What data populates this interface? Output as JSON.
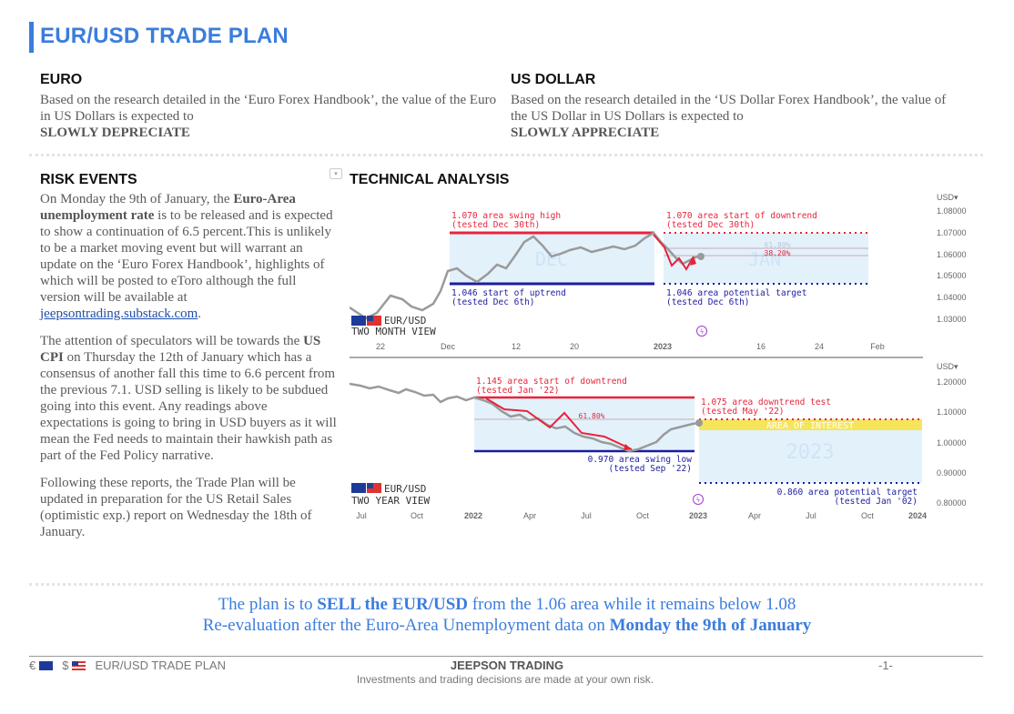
{
  "title": "EUR/USD TRADE PLAN",
  "euro": {
    "heading": "EURO",
    "text": "Based on the research detailed in the ‘Euro Forex Handbook’, the value of the Euro in US Dollars is expected to",
    "verdict": "SLOWLY DEPRECIATE"
  },
  "usd": {
    "heading": "US DOLLAR",
    "text": "Based on the research detailed in the ‘US Dollar Forex Handbook’, the value of the US Dollar in US Dollars is expected to",
    "verdict": "SLOWLY APPRECIATE"
  },
  "risk": {
    "heading": "RISK EVENTS",
    "p1_a": "On Monday the 9th of January, the ",
    "p1_b": "Euro-Area unemployment rate",
    "p1_c": " is to be released and is expected to show a continuation of 6.5 percent.This is unlikely to be a market moving event but will warrant an update on the ‘Euro Forex Handbook’, highlights of which will be posted to eToro although the full version will be available at ",
    "p1_link": "jeepsontrading.substack.com",
    "p1_d": ".",
    "p2_a": "The attention of speculators will be towards the ",
    "p2_b": "US CPI",
    "p2_c": " on Thursday the 12th of January which has a consensus of another fall this time to 6.6 percent from the previous 7.1. USD selling is likely to be subdued going into this event. Any readings above expectations is going to bring in USD buyers as it will mean the Fed needs to maintain their hawkish path as part of the Fed Policy narrative.",
    "p3": "Following these reports, the Trade Plan will be updated in preparation for the US Retail Sales (optimistic exp.) report on Wednesday the 18th of January."
  },
  "ta": {
    "heading": "TECHNICAL ANALYSIS",
    "chart1": {
      "pair": "EUR/USD",
      "view": "TWO MONTH VIEW",
      "currency": "USD",
      "yticks": [
        "1.08000",
        "1.07000",
        "1.06000",
        "1.05000",
        "1.04000",
        "1.03000"
      ],
      "xticks": [
        "22",
        "Dec",
        "12",
        "20",
        "2023",
        "16",
        "24",
        "Feb"
      ],
      "ann_high_1": "1.070 area swing high",
      "ann_high_2": "(tested Dec 30th)",
      "ann_down_1": "1.070 area start of downtrend",
      "ann_down_2": "(tested Dec 30th)",
      "ann_up_1": "1.046 start of uptrend",
      "ann_up_2": "(tested Dec 6th)",
      "ann_tgt_1": "1.046 area potential target",
      "ann_tgt_2": "(tested Dec 6th)",
      "fib1": "61.80%",
      "fib2": "38.20%",
      "wm1": "DEC",
      "wm2": "JAN"
    },
    "chart2": {
      "pair": "EUR/USD",
      "view": "TWO YEAR VIEW",
      "currency": "USD",
      "yticks": [
        "1.20000",
        "1.10000",
        "1.00000",
        "0.90000",
        "0.80000"
      ],
      "xticks": [
        "Jul",
        "Oct",
        "2022",
        "Apr",
        "Jul",
        "Oct",
        "2023",
        "Apr",
        "Jul",
        "Oct",
        "2024"
      ],
      "ann_start_1": "1.145 area start of downtrend",
      "ann_start_2": "(tested Jan '22)",
      "ann_test_1": "1.075 area downtrend test",
      "ann_test_2": "(tested May '22)",
      "ann_low_1": "0.970 area swing low",
      "ann_low_2": "(tested Sep '22)",
      "ann_tgt_1": "0.860 area potential target",
      "ann_tgt_2": "(tested Jan '02)",
      "fib1": "61.80%",
      "aoi": "AREA OF INTEREST",
      "wm": "2023"
    }
  },
  "plan": {
    "l1_a": "The plan is to ",
    "l1_b": "SELL the EUR/USD",
    "l1_c": " from the 1.06 area while it remains below 1.08",
    "l2_a": "Re-evaluation after the Euro-Area Unemployment data on ",
    "l2_b": "Monday the 9th of January"
  },
  "footer": {
    "left": "EUR/USD TRADE PLAN",
    "euro_sym": "€",
    "dollar_sym": "$",
    "center": "JEEPSON TRADING",
    "sub": "Investments and trading decisions are made at your own risk.",
    "page": "-1-"
  },
  "colors": {
    "accent": "#3b7ddd",
    "red": "#e8233a",
    "navy": "#1c1ca0",
    "zone": "#e3f1fb",
    "yellow": "#f5e55b"
  }
}
